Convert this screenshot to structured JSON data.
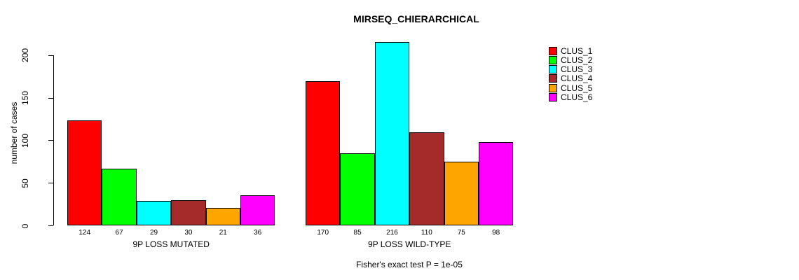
{
  "chart_data": {
    "type": "bar",
    "title": "MIRSEQ_CHIERARCHICAL",
    "ylabel": "number of cases",
    "xlabel": "",
    "ylim": [
      0,
      200
    ],
    "yticks": [
      0,
      50,
      100,
      150,
      200
    ],
    "grid": false,
    "legend_position": "right",
    "legend_entries": [
      "CLUS_1",
      "CLUS_2",
      "CLUS_3",
      "CLUS_4",
      "CLUS_5",
      "CLUS_6"
    ],
    "colors": [
      "#FF0000",
      "#00FF00",
      "#00FFFF",
      "#A52A2A",
      "#FFA500",
      "#FF00FF"
    ],
    "bar_value_labels_shown": true,
    "groups": [
      {
        "label": "9P LOSS MUTATED",
        "values": [
          124,
          67,
          29,
          30,
          21,
          36
        ]
      },
      {
        "label": "9P LOSS WILD-TYPE",
        "values": [
          170,
          85,
          216,
          110,
          75,
          98
        ]
      }
    ],
    "annotation": "Fisher's exact test P = 1e-05"
  }
}
